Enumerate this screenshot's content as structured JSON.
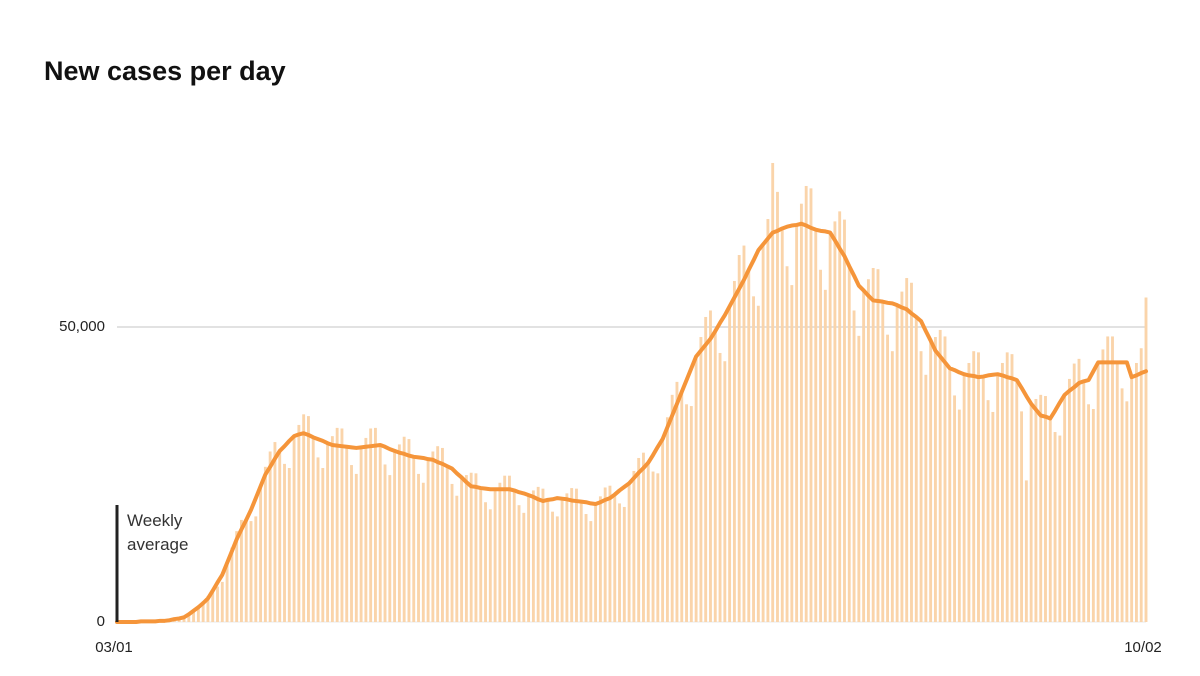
{
  "chart_data": {
    "type": "bar",
    "title": "New cases per day",
    "annotation": "Weekly average",
    "categories": [
      "03/01",
      null,
      null,
      null,
      null,
      null,
      null,
      null,
      null,
      null,
      null,
      null,
      null,
      null,
      null,
      null,
      null,
      null,
      null,
      null,
      null,
      null,
      null,
      null,
      null,
      null,
      null,
      null,
      null,
      null,
      null,
      null,
      null,
      null,
      null,
      null,
      null,
      null,
      null,
      null,
      null,
      null,
      null,
      null,
      null,
      null,
      null,
      null,
      null,
      null,
      null,
      null,
      null,
      null,
      null,
      null,
      null,
      null,
      null,
      null,
      null,
      null,
      null,
      null,
      null,
      null,
      null,
      null,
      null,
      null,
      null,
      null,
      null,
      null,
      null,
      null,
      null,
      null,
      null,
      null,
      null,
      null,
      null,
      null,
      null,
      null,
      null,
      null,
      null,
      null,
      null,
      null,
      null,
      null,
      null,
      null,
      null,
      null,
      null,
      null,
      null,
      null,
      null,
      null,
      null,
      null,
      null,
      null,
      null,
      null,
      null,
      null,
      null,
      null,
      null,
      null,
      null,
      null,
      null,
      null,
      null,
      null,
      null,
      null,
      null,
      null,
      null,
      null,
      null,
      null,
      null,
      null,
      null,
      null,
      null,
      null,
      null,
      null,
      null,
      null,
      null,
      null,
      null,
      null,
      null,
      null,
      null,
      null,
      null,
      null,
      null,
      null,
      null,
      null,
      null,
      null,
      null,
      null,
      null,
      null,
      null,
      null,
      null,
      null,
      null,
      null,
      null,
      null,
      null,
      null,
      null,
      null,
      null,
      null,
      null,
      null,
      null,
      null,
      null,
      null,
      null,
      null,
      null,
      null,
      null,
      null,
      null,
      null,
      null,
      null,
      null,
      null,
      null,
      null,
      null,
      null,
      null,
      null,
      null,
      null,
      null,
      null,
      null,
      null,
      null,
      null,
      null,
      null,
      null,
      null,
      null,
      null,
      null,
      null,
      null,
      "10/02"
    ],
    "series": [
      {
        "type": "bar",
        "color": "#fad4aa",
        "values": [
          0,
          0,
          0,
          0,
          0,
          100,
          100,
          100,
          100,
          200,
          200,
          300,
          600,
          600,
          700,
          1100,
          1900,
          2600,
          3500,
          4400,
          5300,
          6000,
          6800,
          10000,
          12600,
          15400,
          17300,
          17300,
          17100,
          17900,
          23000,
          26300,
          28900,
          30500,
          29000,
          26800,
          26100,
          31500,
          33400,
          35200,
          34900,
          31300,
          27900,
          26100,
          30300,
          31500,
          32900,
          32800,
          29700,
          26600,
          25100,
          29600,
          31200,
          32800,
          32900,
          30000,
          26700,
          24900,
          29000,
          30100,
          31400,
          31000,
          28000,
          25100,
          23600,
          27600,
          28900,
          29800,
          29500,
          26400,
          23400,
          21400,
          24500,
          24900,
          25300,
          25200,
          22700,
          20300,
          19100,
          22500,
          23600,
          24800,
          24800,
          22300,
          19800,
          18500,
          21500,
          22300,
          22900,
          22600,
          20700,
          18700,
          17900,
          20900,
          21800,
          22700,
          22600,
          20400,
          18300,
          17100,
          20000,
          21300,
          22800,
          23100,
          21600,
          20100,
          19500,
          23500,
          25600,
          27800,
          28700,
          27000,
          25500,
          25200,
          31000,
          34700,
          38500,
          40700,
          39000,
          36900,
          36600,
          45000,
          48300,
          51700,
          52800,
          49300,
          45600,
          44200,
          53500,
          57800,
          62200,
          63800,
          59700,
          55200,
          53600,
          64000,
          68300,
          77800,
          72900,
          66700,
          60300,
          57100,
          67300,
          70900,
          73900,
          73500,
          66500,
          59700,
          56300,
          66000,
          67900,
          69600,
          68200,
          60300,
          52800,
          48500,
          56200,
          58100,
          60000,
          59800,
          54300,
          48700,
          45900,
          53700,
          56000,
          58300,
          57500,
          51700,
          45900,
          41900,
          47700,
          48300,
          49500,
          48400,
          43000,
          38400,
          36000,
          42000,
          43900,
          45900,
          45700,
          41600,
          37600,
          35600,
          42000,
          43900,
          45700,
          45400,
          41000,
          35700,
          24000,
          37000,
          37800,
          38500,
          38300,
          34500,
          32200,
          31600,
          38500,
          41200,
          43800,
          44600,
          40800,
          36900,
          36100,
          44000,
          46200,
          48400,
          48400,
          44000,
          39600,
          37400,
          41500,
          43900,
          46400,
          55000
        ]
      },
      {
        "type": "line",
        "color": "#f5953a",
        "values": [
          0,
          0,
          0,
          0,
          0,
          100,
          100,
          100,
          100,
          200,
          200,
          300,
          500,
          600,
          800,
          1300,
          1900,
          2500,
          3200,
          4000,
          5300,
          6700,
          8000,
          10000,
          12000,
          14000,
          15700,
          17300,
          19000,
          21000,
          23000,
          25000,
          26300,
          27700,
          29000,
          29800,
          30700,
          31500,
          31800,
          32000,
          31700,
          31300,
          31000,
          30700,
          30300,
          30000,
          29900,
          29800,
          29700,
          29600,
          29500,
          29600,
          29700,
          29800,
          29900,
          30000,
          29700,
          29300,
          29000,
          28700,
          28500,
          28200,
          28000,
          27900,
          27800,
          27600,
          27500,
          27100,
          26800,
          26400,
          26000,
          25200,
          24500,
          23700,
          23000,
          22900,
          22700,
          22600,
          22500,
          22500,
          22500,
          22500,
          22500,
          22300,
          22000,
          21800,
          21500,
          21200,
          20800,
          20500,
          20700,
          20800,
          21000,
          20900,
          20800,
          20600,
          20500,
          20400,
          20300,
          20100,
          20000,
          20300,
          20700,
          21000,
          21600,
          22300,
          22900,
          23500,
          24400,
          25300,
          26100,
          27000,
          28300,
          29700,
          31000,
          33000,
          35000,
          37000,
          39000,
          41000,
          43000,
          45000,
          46000,
          47000,
          48000,
          49300,
          50700,
          52000,
          53500,
          55000,
          56500,
          58000,
          59700,
          61300,
          63000,
          64000,
          65000,
          66000,
          66300,
          66700,
          67000,
          67200,
          67300,
          67500,
          67200,
          66800,
          66500,
          66300,
          66200,
          66000,
          64700,
          63300,
          62000,
          60300,
          58700,
          57000,
          56200,
          55300,
          54500,
          54400,
          54300,
          54100,
          54000,
          53700,
          53300,
          53000,
          52300,
          51700,
          51000,
          49300,
          47700,
          46000,
          45000,
          44000,
          43000,
          42700,
          42300,
          42000,
          41800,
          41700,
          41500,
          41600,
          41800,
          41900,
          42000,
          41800,
          41500,
          41300,
          41000,
          39700,
          38300,
          37000,
          36000,
          35000,
          34800,
          34500,
          35800,
          37200,
          38500,
          39200,
          39800,
          40500,
          40800,
          41000,
          42500,
          44000,
          44000,
          44000,
          44000,
          44000,
          44000,
          44000,
          41500,
          41800,
          42200,
          42500
        ]
      }
    ],
    "ylim": [
      0,
      80000
    ],
    "yticks": [
      0,
      {
        "value": 50000,
        "label": "50,000"
      }
    ],
    "grid": true
  }
}
